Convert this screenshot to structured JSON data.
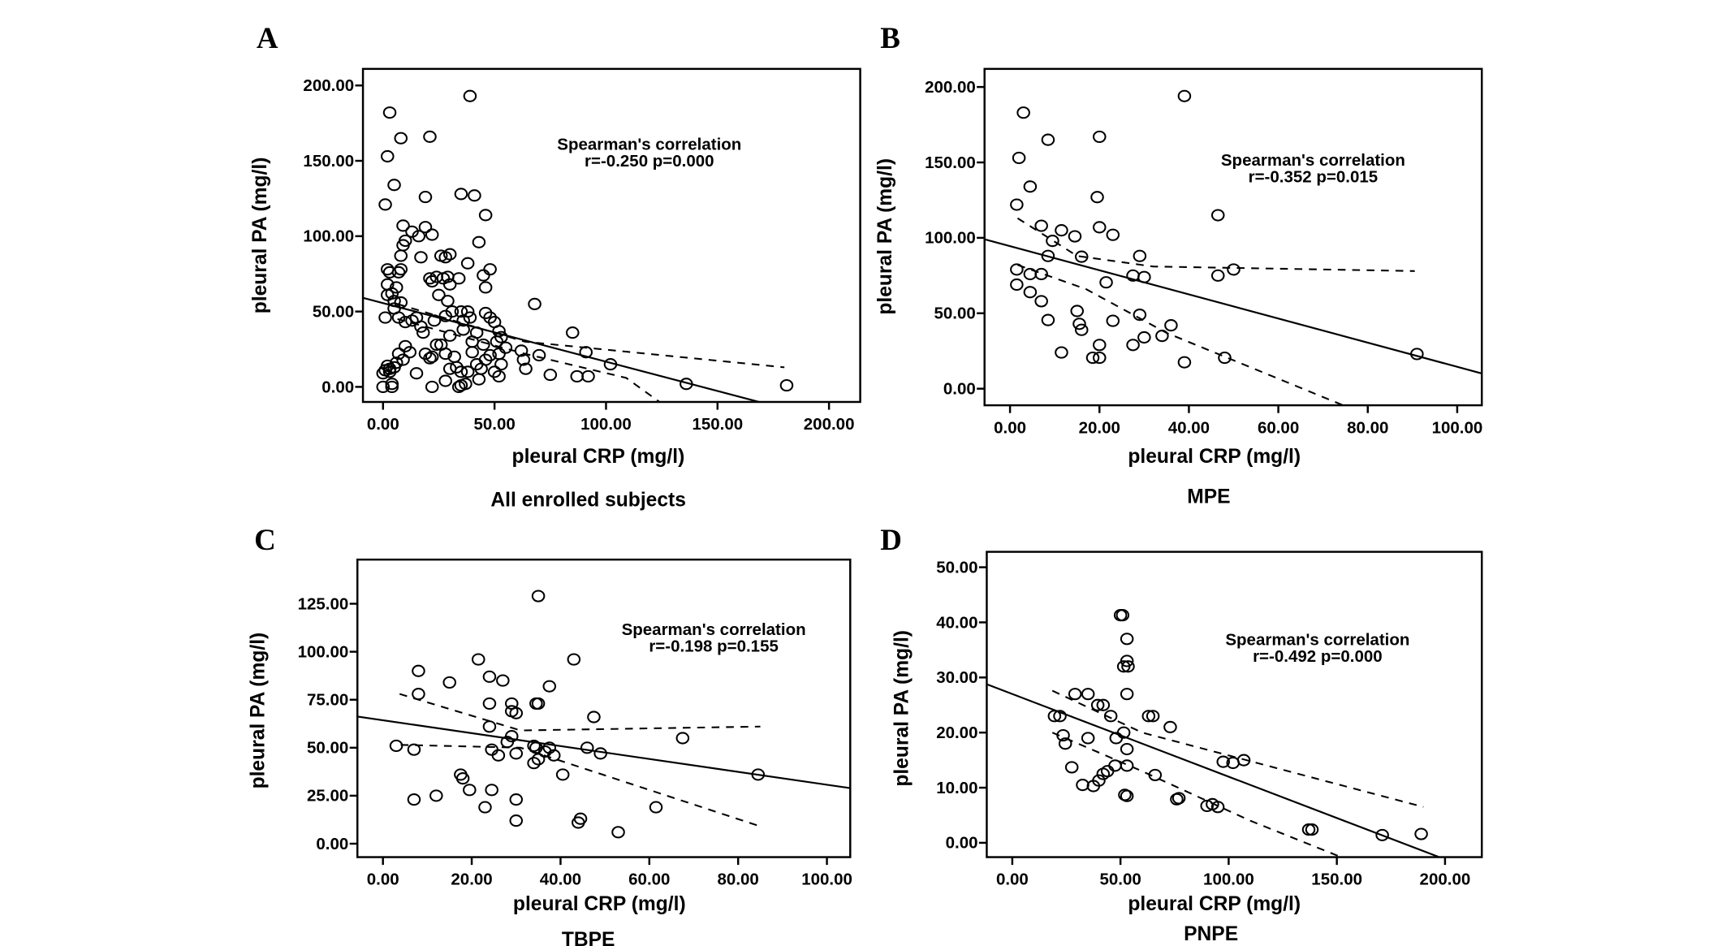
{
  "chart_data": [
    {
      "panel": "A",
      "type": "scatter",
      "caption": "All enrolled subjects",
      "xlabel": "pleural  CRP (mg/l)",
      "ylabel": "pleural  PA (mg/l)",
      "xticks": [
        "0.00",
        "50.00",
        "100.00",
        "150.00",
        "200.00"
      ],
      "xtick_values": [
        0,
        50,
        100,
        150,
        200
      ],
      "yticks": [
        "0.00",
        "50.00",
        "100.00",
        "150.00",
        "200.00"
      ],
      "ytick_values": [
        0,
        50,
        100,
        150,
        200
      ],
      "xlim": [
        -9,
        214
      ],
      "ylim": [
        -10,
        211
      ],
      "annotation": [
        "Spearman's  correlation",
        "r=-0.250     p=0.000"
      ],
      "fit": {
        "intercept": 55.6,
        "slope": -0.389
      },
      "ci_upper": [
        [
          6.5,
          55
        ],
        [
          63.6,
          30
        ],
        [
          180,
          13
        ]
      ],
      "ci_lower": [
        [
          6.5,
          45
        ],
        [
          63.6,
          22
        ],
        [
          109,
          6
        ],
        [
          124,
          -10
        ]
      ],
      "points": [
        [
          39,
          193
        ],
        [
          3,
          182
        ],
        [
          21,
          166
        ],
        [
          8,
          165
        ],
        [
          2,
          153
        ],
        [
          5,
          134
        ],
        [
          1,
          121
        ],
        [
          19,
          126
        ],
        [
          35,
          128
        ],
        [
          41,
          127
        ],
        [
          46,
          114
        ],
        [
          9,
          107
        ],
        [
          19,
          106
        ],
        [
          13,
          103
        ],
        [
          16,
          100
        ],
        [
          22,
          101
        ],
        [
          10,
          97
        ],
        [
          9,
          94
        ],
        [
          43,
          96
        ],
        [
          17,
          86
        ],
        [
          26,
          87
        ],
        [
          28,
          86
        ],
        [
          30,
          88
        ],
        [
          8,
          87
        ],
        [
          2,
          78
        ],
        [
          3,
          76
        ],
        [
          7,
          76
        ],
        [
          8,
          78
        ],
        [
          48,
          78
        ],
        [
          21,
          72
        ],
        [
          24,
          73
        ],
        [
          27,
          72
        ],
        [
          29,
          73
        ],
        [
          34,
          72
        ],
        [
          45,
          74
        ],
        [
          38,
          82
        ],
        [
          2,
          68
        ],
        [
          6,
          66
        ],
        [
          4,
          62
        ],
        [
          2,
          61
        ],
        [
          22,
          70
        ],
        [
          25,
          61
        ],
        [
          30,
          68
        ],
        [
          46,
          66
        ],
        [
          5,
          57
        ],
        [
          8,
          56
        ],
        [
          29,
          57
        ],
        [
          68,
          55
        ],
        [
          1,
          46
        ],
        [
          7,
          46
        ],
        [
          5,
          52
        ],
        [
          10,
          43
        ],
        [
          13,
          44
        ],
        [
          15,
          46
        ],
        [
          17,
          40
        ],
        [
          18,
          36
        ],
        [
          23,
          44
        ],
        [
          28,
          47
        ],
        [
          31,
          50
        ],
        [
          35,
          50
        ],
        [
          38,
          50
        ],
        [
          36,
          44
        ],
        [
          42,
          36
        ],
        [
          46,
          49
        ],
        [
          48,
          46
        ],
        [
          50,
          43
        ],
        [
          52,
          37
        ],
        [
          53,
          33
        ],
        [
          51,
          30
        ],
        [
          55,
          26
        ],
        [
          36,
          38
        ],
        [
          39,
          46
        ],
        [
          85,
          36
        ],
        [
          62,
          24
        ],
        [
          70,
          21
        ],
        [
          91,
          23
        ],
        [
          63,
          18
        ],
        [
          64,
          12
        ],
        [
          75,
          8
        ],
        [
          87,
          7
        ],
        [
          92,
          7
        ],
        [
          102,
          15
        ],
        [
          136,
          2
        ],
        [
          181,
          1
        ],
        [
          2,
          14
        ],
        [
          3,
          12
        ],
        [
          1,
          11
        ],
        [
          0,
          9
        ],
        [
          3,
          10
        ],
        [
          5,
          13
        ],
        [
          6,
          16
        ],
        [
          7,
          22
        ],
        [
          10,
          27
        ],
        [
          12,
          23
        ],
        [
          19,
          22
        ],
        [
          21,
          19
        ],
        [
          22,
          20
        ],
        [
          24,
          28
        ],
        [
          26,
          28
        ],
        [
          30,
          34
        ],
        [
          28,
          22
        ],
        [
          32,
          20
        ],
        [
          33,
          13
        ],
        [
          35,
          10
        ],
        [
          30,
          12
        ],
        [
          38,
          10
        ],
        [
          40,
          23
        ],
        [
          42,
          15
        ],
        [
          44,
          12
        ],
        [
          46,
          18
        ],
        [
          48,
          21
        ],
        [
          50,
          10
        ],
        [
          52,
          7
        ],
        [
          53,
          15
        ],
        [
          52,
          22
        ],
        [
          0,
          0
        ],
        [
          4,
          0
        ],
        [
          4,
          2
        ],
        [
          22,
          0
        ],
        [
          28,
          4
        ],
        [
          34,
          0
        ],
        [
          35,
          1
        ],
        [
          37,
          2
        ],
        [
          43,
          5
        ],
        [
          15,
          9
        ],
        [
          9,
          18
        ],
        [
          45,
          28
        ],
        [
          40,
          30
        ]
      ]
    },
    {
      "panel": "B",
      "type": "scatter",
      "caption": "MPE",
      "xlabel": "pleural  CRP (mg/l)",
      "ylabel": "pleural  PA (mg/l)",
      "xticks": [
        "0.00",
        "20.00",
        "40.00",
        "60.00",
        "80.00",
        "100.00"
      ],
      "xtick_values": [
        0,
        20,
        40,
        60,
        80,
        100
      ],
      "yticks": [
        "0.00",
        "50.00",
        "100.00",
        "150.00",
        "200.00"
      ],
      "ytick_values": [
        0,
        50,
        100,
        150,
        200
      ],
      "xlim": [
        -5.7,
        105.5
      ],
      "ylim": [
        -11,
        212
      ],
      "annotation": [
        "Spearman's  correlation",
        "r=-0.352     p=0.015"
      ],
      "fit": {
        "intercept": 94.5,
        "slope": -0.8
      },
      "ci_upper": [
        [
          1.7,
          113
        ],
        [
          15,
          88
        ],
        [
          32,
          81
        ],
        [
          90.5,
          78
        ]
      ],
      "ci_lower": [
        [
          1.7,
          82
        ],
        [
          17,
          66
        ],
        [
          35,
          37
        ],
        [
          74.5,
          -11
        ]
      ],
      "points": [
        [
          39,
          194
        ],
        [
          3,
          183
        ],
        [
          8.5,
          165
        ],
        [
          20,
          167
        ],
        [
          2,
          153
        ],
        [
          4.5,
          134
        ],
        [
          1.5,
          122
        ],
        [
          19.5,
          127
        ],
        [
          46.5,
          115
        ],
        [
          7,
          108
        ],
        [
          11.5,
          105
        ],
        [
          14.5,
          101
        ],
        [
          20,
          107
        ],
        [
          23,
          102
        ],
        [
          9.5,
          98
        ],
        [
          8.5,
          88
        ],
        [
          16,
          87.5
        ],
        [
          29,
          88
        ],
        [
          1.5,
          79
        ],
        [
          4.5,
          76
        ],
        [
          7,
          76
        ],
        [
          27.5,
          75
        ],
        [
          30,
          74
        ],
        [
          21.5,
          70.5
        ],
        [
          46.5,
          75
        ],
        [
          50,
          79
        ],
        [
          1.5,
          69
        ],
        [
          4.5,
          64
        ],
        [
          7,
          58
        ],
        [
          15,
          51.5
        ],
        [
          8.5,
          45.5
        ],
        [
          15.5,
          43
        ],
        [
          16,
          39
        ],
        [
          23,
          45
        ],
        [
          29,
          49
        ],
        [
          30,
          34
        ],
        [
          27.5,
          29
        ],
        [
          34,
          35
        ],
        [
          36,
          42
        ],
        [
          11.5,
          24
        ],
        [
          18.5,
          20.5
        ],
        [
          20,
          20.5
        ],
        [
          39,
          17.5
        ],
        [
          48,
          20.5
        ],
        [
          91,
          23
        ],
        [
          20,
          29
        ]
      ]
    },
    {
      "panel": "C",
      "type": "scatter",
      "caption": "TBPE",
      "xlabel": "pleural  CRP (mg/l)",
      "ylabel": "pleural  PA (mg/l)",
      "xticks": [
        "0.00",
        "20.00",
        "40.00",
        "60.00",
        "80.00",
        "100.00"
      ],
      "xtick_values": [
        0,
        20,
        40,
        60,
        80,
        100
      ],
      "yticks": [
        "0.00",
        "25.00",
        "50.00",
        "75.00",
        "100.00",
        "125.00"
      ],
      "ytick_values": [
        0,
        25,
        50,
        75,
        100,
        125
      ],
      "xlim": [
        -5.75,
        105.25
      ],
      "ylim": [
        -7,
        148
      ],
      "annotation": [
        "Spearman's  correlation",
        "r=-0.198     p=0.155"
      ],
      "fit": {
        "intercept": 64.3,
        "slope": -0.336
      },
      "ci_upper": [
        [
          3.75,
          78
        ],
        [
          31,
          59
        ],
        [
          85,
          61
        ]
      ],
      "ci_lower": [
        [
          4,
          51.5
        ],
        [
          31,
          50
        ],
        [
          85,
          9
        ]
      ],
      "points": [
        [
          35,
          129
        ],
        [
          8,
          90
        ],
        [
          8,
          78
        ],
        [
          15,
          84
        ],
        [
          21.5,
          96
        ],
        [
          24,
          87
        ],
        [
          27,
          85
        ],
        [
          43,
          96
        ],
        [
          37.5,
          82
        ],
        [
          24,
          73
        ],
        [
          29,
          73
        ],
        [
          29,
          69
        ],
        [
          30,
          68
        ],
        [
          34.5,
          73
        ],
        [
          35,
          73
        ],
        [
          47.5,
          66
        ],
        [
          24,
          61
        ],
        [
          29,
          56
        ],
        [
          28,
          53
        ],
        [
          3,
          51
        ],
        [
          7,
          49
        ],
        [
          24.5,
          49
        ],
        [
          26,
          46
        ],
        [
          30,
          47
        ],
        [
          34,
          51
        ],
        [
          34.5,
          50
        ],
        [
          36.5,
          48
        ],
        [
          37.5,
          50
        ],
        [
          38.5,
          46
        ],
        [
          46,
          50
        ],
        [
          49,
          47
        ],
        [
          34,
          42
        ],
        [
          35,
          44
        ],
        [
          67.5,
          55
        ],
        [
          84.5,
          36
        ],
        [
          17.5,
          36
        ],
        [
          18,
          34
        ],
        [
          12,
          25
        ],
        [
          7,
          23
        ],
        [
          19.5,
          28
        ],
        [
          24.5,
          28
        ],
        [
          23,
          19
        ],
        [
          30,
          23
        ],
        [
          30,
          12
        ],
        [
          44.5,
          13
        ],
        [
          44,
          11
        ],
        [
          53,
          6
        ],
        [
          61.5,
          19
        ],
        [
          40.5,
          36
        ]
      ]
    },
    {
      "panel": "D",
      "type": "scatter",
      "caption": "PNPE",
      "xlabel": "pleural  CRP (mg/l)",
      "ylabel": "pleural  PA (mg/l)",
      "xticks": [
        "0.00",
        "50.00",
        "100.00",
        "150.00",
        "200.00"
      ],
      "xtick_values": [
        0,
        50,
        100,
        150,
        200
      ],
      "yticks": [
        "0.00",
        "10.00",
        "20.00",
        "30.00",
        "40.00",
        "50.00"
      ],
      "ytick_values": [
        0,
        10,
        20,
        30,
        40,
        50
      ],
      "xlim": [
        -11.8,
        217
      ],
      "ylim": [
        -2.6,
        52.8
      ],
      "annotation": [
        "Spearman's  correlation",
        "r=-0.492     p=0.000"
      ],
      "fit": {
        "intercept": 27,
        "slope": -0.15
      },
      "ci_upper": [
        [
          18.5,
          27.6
        ],
        [
          60,
          20
        ],
        [
          190,
          6.5
        ]
      ],
      "ci_lower": [
        [
          18.5,
          20
        ],
        [
          60,
          13
        ],
        [
          110,
          4
        ],
        [
          152,
          -2.6
        ]
      ],
      "points": [
        [
          50,
          41.3
        ],
        [
          51,
          41.3
        ],
        [
          53,
          37
        ],
        [
          53,
          33
        ],
        [
          51.5,
          32
        ],
        [
          53.5,
          32
        ],
        [
          53,
          27
        ],
        [
          29,
          27
        ],
        [
          35,
          27
        ],
        [
          39.5,
          25
        ],
        [
          42,
          25
        ],
        [
          45.5,
          23
        ],
        [
          19.5,
          23
        ],
        [
          22,
          23
        ],
        [
          63,
          23
        ],
        [
          65,
          23
        ],
        [
          73,
          21
        ],
        [
          23.5,
          19.5
        ],
        [
          24.5,
          18
        ],
        [
          51.5,
          20
        ],
        [
          53,
          17
        ],
        [
          35,
          19
        ],
        [
          48,
          19
        ],
        [
          27.5,
          13.7
        ],
        [
          42,
          12.5
        ],
        [
          44,
          13
        ],
        [
          47.5,
          14
        ],
        [
          53,
          14
        ],
        [
          66,
          12.3
        ],
        [
          97.5,
          14.7
        ],
        [
          102,
          14.5
        ],
        [
          107,
          15
        ],
        [
          32.5,
          10.5
        ],
        [
          37.5,
          10.3
        ],
        [
          40,
          11.3
        ],
        [
          52,
          8.7
        ],
        [
          53,
          8.5
        ],
        [
          76,
          7.9
        ],
        [
          77,
          8.1
        ],
        [
          90,
          6.7
        ],
        [
          92.5,
          7
        ],
        [
          95,
          6.5
        ],
        [
          137,
          2.4
        ],
        [
          138.5,
          2.4
        ],
        [
          171,
          1.4
        ],
        [
          189,
          1.6
        ]
      ]
    }
  ]
}
